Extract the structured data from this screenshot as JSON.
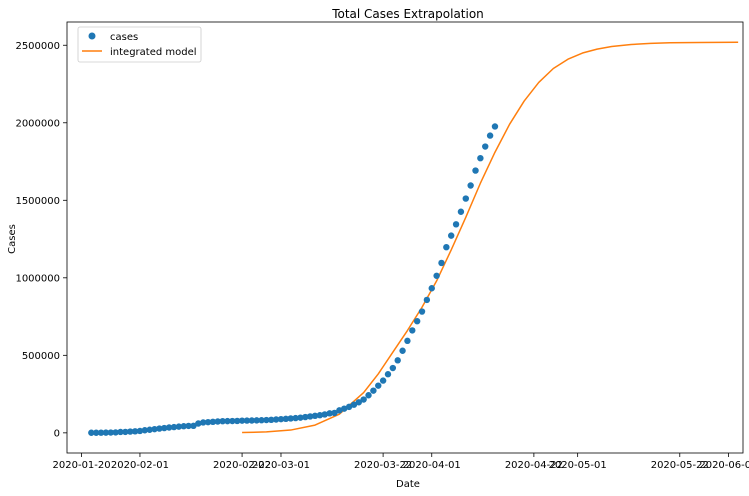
{
  "chart_data": {
    "type": "scatter",
    "title": "Total Cases Extrapolation",
    "xlabel": "Date",
    "ylabel": "Cases",
    "x_scale": "date",
    "xlim": [
      "2020-01-17",
      "2020-06-04"
    ],
    "ylim": [
      -130000,
      2650000
    ],
    "x_ticks": [
      "2020-01-20",
      "2020-02-01",
      "2020-02-22",
      "2020-03-01",
      "2020-03-22",
      "2020-04-01",
      "2020-04-22",
      "2020-05-01",
      "2020-05-22",
      "2020-06-01"
    ],
    "y_ticks": [
      0,
      500000,
      1000000,
      1500000,
      2000000,
      2500000
    ],
    "y_tick_labels": [
      "0",
      "500000",
      "1000000",
      "1500000",
      "2000000",
      "2500000"
    ],
    "grid": false,
    "legend": {
      "placement": "top-left",
      "entries": [
        "cases",
        "integrated model"
      ]
    },
    "colors": {
      "cases": "#1f77b4",
      "integrated model": "#ff7f0e"
    },
    "series": [
      {
        "name": "cases",
        "style": "markers",
        "x": [
          "2020-01-22",
          "2020-01-23",
          "2020-01-24",
          "2020-01-25",
          "2020-01-26",
          "2020-01-27",
          "2020-01-28",
          "2020-01-29",
          "2020-01-30",
          "2020-01-31",
          "2020-02-01",
          "2020-02-02",
          "2020-02-03",
          "2020-02-04",
          "2020-02-05",
          "2020-02-06",
          "2020-02-07",
          "2020-02-08",
          "2020-02-09",
          "2020-02-10",
          "2020-02-11",
          "2020-02-12",
          "2020-02-13",
          "2020-02-14",
          "2020-02-15",
          "2020-02-16",
          "2020-02-17",
          "2020-02-18",
          "2020-02-19",
          "2020-02-20",
          "2020-02-21",
          "2020-02-22",
          "2020-02-23",
          "2020-02-24",
          "2020-02-25",
          "2020-02-26",
          "2020-02-27",
          "2020-02-28",
          "2020-02-29",
          "2020-03-01",
          "2020-03-02",
          "2020-03-03",
          "2020-03-04",
          "2020-03-05",
          "2020-03-06",
          "2020-03-07",
          "2020-03-08",
          "2020-03-09",
          "2020-03-10",
          "2020-03-11",
          "2020-03-12",
          "2020-03-13",
          "2020-03-14",
          "2020-03-15",
          "2020-03-16",
          "2020-03-17",
          "2020-03-18",
          "2020-03-19",
          "2020-03-20",
          "2020-03-21",
          "2020-03-22",
          "2020-03-23",
          "2020-03-24",
          "2020-03-25",
          "2020-03-26",
          "2020-03-27",
          "2020-03-28",
          "2020-03-29",
          "2020-03-30",
          "2020-03-31",
          "2020-04-01",
          "2020-04-02",
          "2020-04-03",
          "2020-04-04",
          "2020-04-05",
          "2020-04-06",
          "2020-04-07",
          "2020-04-08",
          "2020-04-09",
          "2020-04-10",
          "2020-04-11",
          "2020-04-12",
          "2020-04-13",
          "2020-04-14"
        ],
        "y": [
          555,
          654,
          941,
          1434,
          2118,
          2927,
          5578,
          6166,
          8234,
          9927,
          12038,
          16787,
          19881,
          23892,
          27635,
          30794,
          34391,
          37120,
          40150,
          42762,
          44802,
          45221,
          60368,
          66885,
          69030,
          71224,
          73258,
          75136,
          75639,
          76197,
          76823,
          78579,
          78965,
          79568,
          80413,
          81395,
          82754,
          84120,
          86011,
          88369,
          90306,
          92840,
          95120,
          97886,
          101801,
          105847,
          109821,
          113590,
          118620,
          125875,
          128352,
          145205,
          156101,
          167454,
          181574,
          197102,
          214821,
          242570,
          272208,
          304507,
          336953,
          378235,
          418045,
          467653,
          529591,
          593291,
          660706,
          720117,
          782365,
          857487,
          932605,
          1013157,
          1095917,
          1197405,
          1272115,
          1345101,
          1426096,
          1511104,
          1595350,
          1691719,
          1771514,
          1846680,
          1917320,
          1976191
        ]
      },
      {
        "name": "integrated model",
        "style": "line",
        "x": [
          "2020-02-22",
          "2020-02-27",
          "2020-03-03",
          "2020-03-08",
          "2020-03-13",
          "2020-03-18",
          "2020-03-21",
          "2020-03-24",
          "2020-03-27",
          "2020-03-30",
          "2020-04-02",
          "2020-04-05",
          "2020-04-08",
          "2020-04-11",
          "2020-04-14",
          "2020-04-17",
          "2020-04-20",
          "2020-04-23",
          "2020-04-26",
          "2020-04-29",
          "2020-05-02",
          "2020-05-05",
          "2020-05-08",
          "2020-05-12",
          "2020-05-16",
          "2020-05-20",
          "2020-05-26",
          "2020-06-03"
        ],
        "y": [
          2000,
          6000,
          18000,
          50000,
          120000,
          260000,
          380000,
          520000,
          660000,
          810000,
          980000,
          1180000,
          1390000,
          1610000,
          1810000,
          1990000,
          2140000,
          2260000,
          2350000,
          2410000,
          2450000,
          2475000,
          2492000,
          2505000,
          2512000,
          2516000,
          2518000,
          2519000
        ]
      }
    ]
  }
}
